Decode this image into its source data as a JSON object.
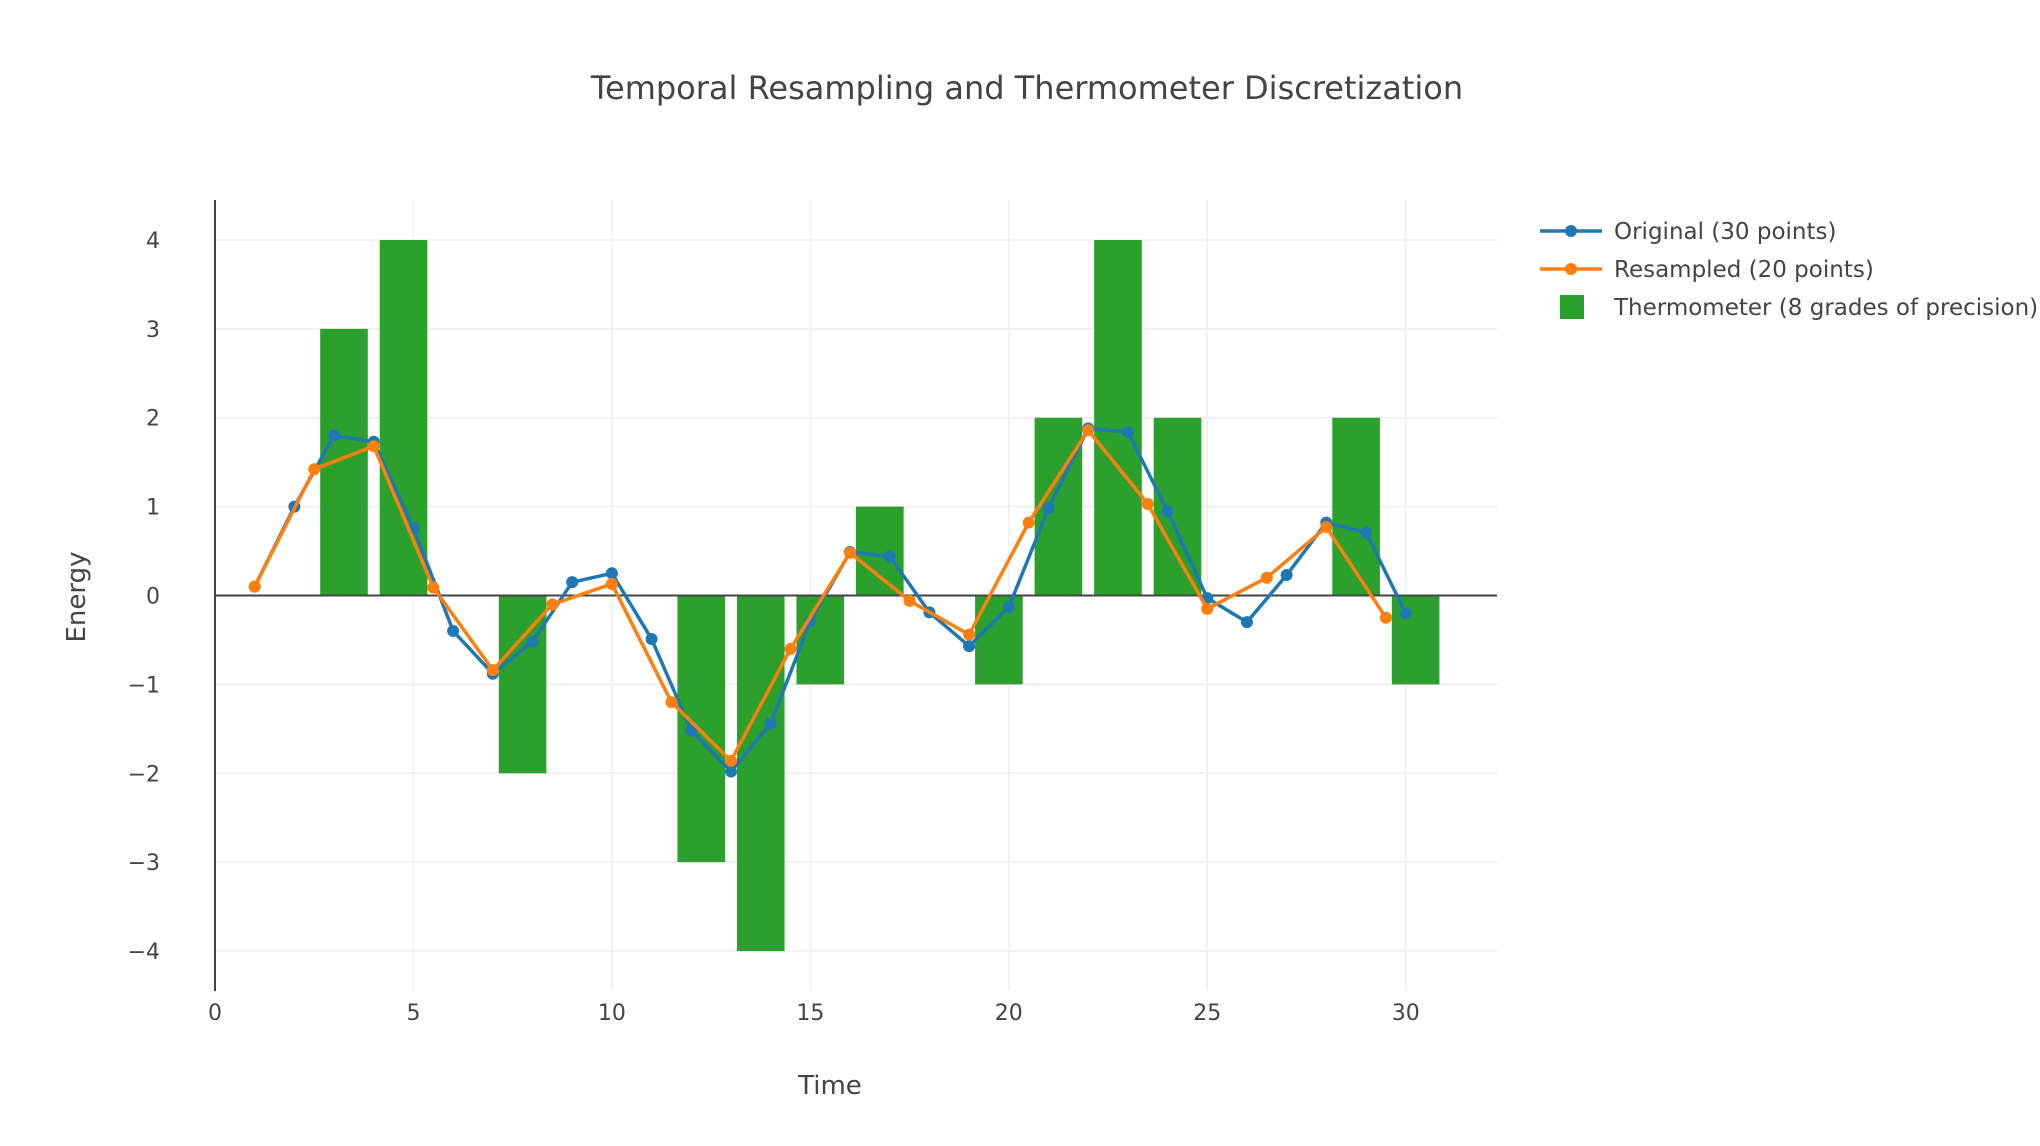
{
  "chart_data": {
    "type": "bar",
    "title": "Temporal Resampling and Thermometer Discretization",
    "xlabel": "Time",
    "ylabel": "Energy",
    "xlim": [
      0,
      32.3
    ],
    "ylim": [
      -4.45,
      4.45
    ],
    "xticks": [
      0,
      5,
      10,
      15,
      20,
      25,
      30
    ],
    "yticks": [
      -4,
      -3,
      -2,
      -1,
      0,
      1,
      2,
      3,
      4
    ],
    "xtick_labels": [
      "0",
      "5",
      "10",
      "15",
      "20",
      "25",
      "30"
    ],
    "ytick_labels": [
      "−4",
      "−3",
      "−2",
      "−1",
      "0",
      "1",
      "2",
      "3",
      "4"
    ],
    "grid": true,
    "legend_position": "top-right",
    "series": [
      {
        "name": "Original (30 points)",
        "kind": "line+markers",
        "color": "#1f77b4",
        "x": [
          1,
          2,
          3,
          4,
          5,
          6,
          7,
          8,
          9,
          10,
          11,
          12,
          13,
          14,
          15,
          16,
          17,
          18,
          19,
          20,
          21,
          22,
          23,
          24,
          25,
          26,
          27,
          28,
          29,
          30
        ],
        "y": [
          0.1,
          1.0,
          1.8,
          1.73,
          0.76,
          -0.4,
          -0.88,
          -0.52,
          0.15,
          0.25,
          -0.49,
          -1.52,
          -1.98,
          -1.44,
          -0.29,
          0.49,
          0.44,
          -0.19,
          -0.57,
          -0.13,
          0.98,
          1.88,
          1.84,
          0.95,
          -0.03,
          -0.3,
          0.23,
          0.82,
          0.71,
          -0.2
        ]
      },
      {
        "name": "Resampled (20 points)",
        "kind": "line+markers",
        "color": "#ff7f0e",
        "x": [
          1,
          2.5,
          4,
          5.5,
          7,
          8.5,
          10,
          11.5,
          13,
          14.5,
          16,
          17.5,
          19,
          20.5,
          22,
          23.5,
          25,
          26.5,
          28,
          29.5
        ],
        "y": [
          0.1,
          1.42,
          1.68,
          0.09,
          -0.84,
          -0.1,
          0.13,
          -1.2,
          -1.86,
          -0.6,
          0.48,
          -0.06,
          -0.44,
          0.82,
          1.86,
          1.03,
          -0.15,
          0.2,
          0.77,
          -0.25
        ]
      },
      {
        "name": "Thermometer (8 grades of precision)",
        "kind": "bar",
        "color": "#2ca02c",
        "x": [
          1.75,
          3.25,
          4.75,
          6.25,
          7.75,
          9.25,
          10.75,
          12.25,
          13.75,
          15.25,
          16.75,
          18.25,
          19.75,
          21.25,
          22.75,
          24.25,
          25.75,
          27.25,
          28.75,
          30.25
        ],
        "y": [
          0,
          3,
          4,
          0,
          -2,
          0,
          0,
          -3,
          -4,
          -1,
          1,
          0,
          -1,
          2,
          4,
          2,
          0,
          0,
          2,
          -1
        ]
      }
    ]
  }
}
